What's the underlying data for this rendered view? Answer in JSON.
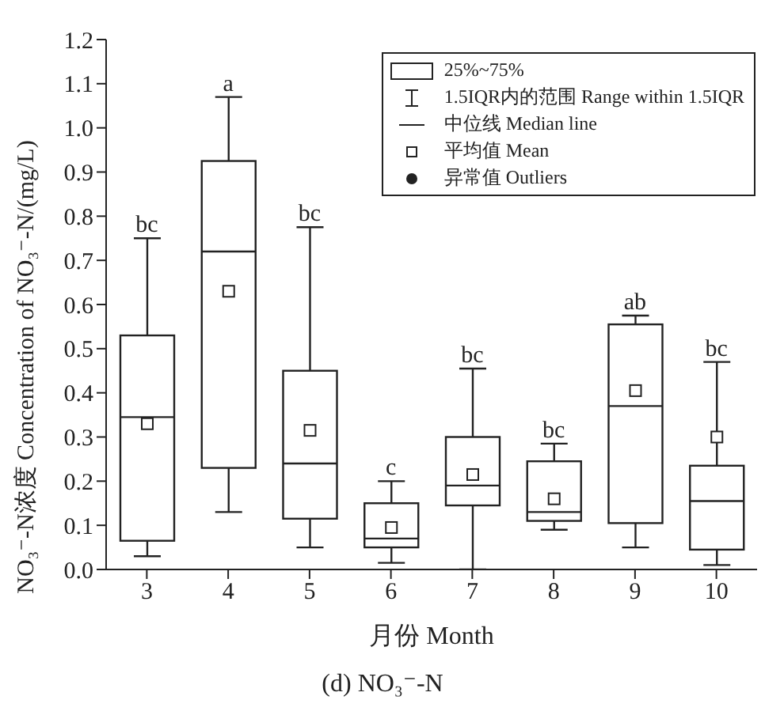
{
  "chart_data": {
    "type": "box",
    "title": "(d) NO₃⁻-N",
    "xlabel": "月份 Month",
    "ylabel": "NO₃⁻-N浓度 Concentration of NO₃⁻-N/(mg/L)",
    "categories": [
      "3",
      "4",
      "5",
      "6",
      "7",
      "8",
      "9",
      "10"
    ],
    "color": "#222222",
    "boxes": [
      {
        "low": 0.03,
        "q1": 0.065,
        "median": 0.345,
        "q3": 0.53,
        "high": 0.75,
        "mean": 0.33
      },
      {
        "low": 0.13,
        "q1": 0.23,
        "median": 0.72,
        "q3": 0.925,
        "high": 1.07,
        "mean": 0.63
      },
      {
        "low": 0.05,
        "q1": 0.115,
        "median": 0.24,
        "q3": 0.45,
        "high": 0.775,
        "mean": 0.315
      },
      {
        "low": 0.015,
        "q1": 0.05,
        "median": 0.07,
        "q3": 0.15,
        "high": 0.2,
        "mean": 0.095
      },
      {
        "low": 0,
        "q1": 0.145,
        "median": 0.19,
        "q3": 0.3,
        "high": 0.455,
        "mean": 0.215
      },
      {
        "low": 0.09,
        "q1": 0.11,
        "median": 0.13,
        "q3": 0.245,
        "high": 0.285,
        "mean": 0.16
      },
      {
        "low": 0.05,
        "q1": 0.105,
        "median": 0.37,
        "q3": 0.555,
        "high": 0.575,
        "mean": 0.405
      },
      {
        "low": 0.01,
        "q1": 0.045,
        "median": 0.155,
        "q3": 0.235,
        "high": 0.47,
        "mean": 0.3
      }
    ],
    "ylim": [
      0,
      1.2
    ],
    "yticks": [
      {
        "value": 0,
        "label": "0.0"
      },
      0.1,
      0.2,
      0.3,
      0.4,
      0.5,
      0.6,
      0.7,
      0.8,
      0.9,
      {
        "value": 1,
        "label": "1.0"
      },
      1.1,
      1.2
    ],
    "grid": false,
    "annotations": [
      {
        "text": "bc",
        "x": "3",
        "y": 0.75
      },
      {
        "text": "a",
        "x": "4",
        "y": 1.07
      },
      {
        "text": "bc",
        "x": "5",
        "y": 0.775
      },
      {
        "text": "c",
        "x": "6",
        "y": 0.2
      },
      {
        "text": "bc",
        "x": "7",
        "y": 0.455
      },
      {
        "text": "bc",
        "x": "8",
        "y": 0.285
      },
      {
        "text": "ab",
        "x": "9",
        "y": 0.575
      },
      {
        "text": "bc",
        "x": "10",
        "y": 0.47
      },
      "25%~75%",
      "1.5IQR内的范围 Range within 1.5IQR",
      "中位线 Median line",
      "平均值 Mean",
      "异常值 Outliers"
    ]
  }
}
